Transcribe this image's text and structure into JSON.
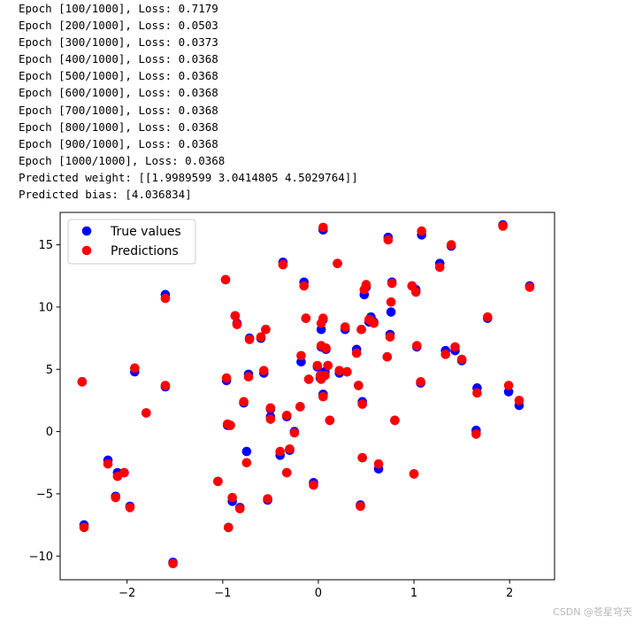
{
  "console": {
    "lines": [
      "Epoch [100/1000], Loss: 0.7179",
      "Epoch [200/1000], Loss: 0.0503",
      "Epoch [300/1000], Loss: 0.0373",
      "Epoch [400/1000], Loss: 0.0368",
      "Epoch [500/1000], Loss: 0.0368",
      "Epoch [600/1000], Loss: 0.0368",
      "Epoch [700/1000], Loss: 0.0368",
      "Epoch [800/1000], Loss: 0.0368",
      "Epoch [900/1000], Loss: 0.0368",
      "Epoch [1000/1000], Loss: 0.0368",
      "Predicted weight: [[1.9989599 3.0414805 4.5029764]]",
      "Predicted bias: [4.036834]"
    ]
  },
  "watermark": "CSDN @苍星穹天",
  "chart_data": {
    "type": "scatter",
    "title": "",
    "xlabel": "",
    "ylabel": "",
    "xlim": [
      -2.7,
      2.47
    ],
    "ylim": [
      -11.9,
      17.6
    ],
    "xticks": [
      -2,
      -1,
      0,
      1,
      2
    ],
    "ytick_values": [
      -10,
      -5,
      0,
      5,
      10,
      15
    ],
    "ytick_labels": [
      "−10",
      "−5",
      "0",
      "5",
      "10",
      "15"
    ],
    "grid": false,
    "legend_position": "top-left",
    "series": [
      {
        "name": "True values",
        "color": "#0000ff",
        "points": [
          [
            -2.47,
            4.0
          ],
          [
            -2.45,
            -7.5
          ],
          [
            -2.2,
            -2.3
          ],
          [
            -2.12,
            -5.2
          ],
          [
            -2.1,
            -3.3
          ],
          [
            -2.03,
            -3.3
          ],
          [
            -1.97,
            -6.0
          ],
          [
            -1.92,
            4.8
          ],
          [
            -1.8,
            1.5
          ],
          [
            -1.6,
            11.0
          ],
          [
            -1.6,
            3.6
          ],
          [
            -1.52,
            -10.5
          ],
          [
            -1.05,
            -4.0
          ],
          [
            -0.97,
            12.2
          ],
          [
            -0.96,
            4.1
          ],
          [
            -0.95,
            0.5
          ],
          [
            -0.94,
            -7.7
          ],
          [
            -0.92,
            0.5
          ],
          [
            -0.9,
            -5.6
          ],
          [
            -0.87,
            9.3
          ],
          [
            -0.85,
            8.7
          ],
          [
            -0.82,
            -6.1
          ],
          [
            -0.78,
            2.3
          ],
          [
            -0.75,
            -1.6
          ],
          [
            -0.73,
            4.6
          ],
          [
            -0.72,
            7.5
          ],
          [
            -0.6,
            7.5
          ],
          [
            -0.57,
            4.7
          ],
          [
            -0.55,
            8.2
          ],
          [
            -0.53,
            -5.5
          ],
          [
            -0.5,
            1.2
          ],
          [
            -0.5,
            1.8
          ],
          [
            -0.4,
            -1.9
          ],
          [
            -0.37,
            13.6
          ],
          [
            -0.33,
            -3.3
          ],
          [
            -0.33,
            1.2
          ],
          [
            -0.3,
            -1.5
          ],
          [
            -0.25,
            0.0
          ],
          [
            -0.19,
            2.0
          ],
          [
            -0.18,
            5.6
          ],
          [
            -0.15,
            12.0
          ],
          [
            -0.13,
            9.1
          ],
          [
            -0.1,
            4.2
          ],
          [
            -0.05,
            -4.1
          ],
          [
            -0.01,
            5.2
          ],
          [
            0.02,
            4.3
          ],
          [
            0.03,
            8.2
          ],
          [
            0.03,
            6.8
          ],
          [
            0.03,
            4.5
          ],
          [
            0.05,
            9.0
          ],
          [
            0.05,
            3.0
          ],
          [
            0.05,
            16.2
          ],
          [
            0.07,
            4.8
          ],
          [
            0.08,
            6.6
          ],
          [
            0.1,
            5.3
          ],
          [
            0.12,
            0.9
          ],
          [
            0.2,
            13.5
          ],
          [
            0.22,
            4.7
          ],
          [
            0.28,
            8.2
          ],
          [
            0.3,
            4.8
          ],
          [
            0.4,
            6.6
          ],
          [
            0.42,
            3.7
          ],
          [
            0.44,
            -5.9
          ],
          [
            0.45,
            8.2
          ],
          [
            0.46,
            -2.1
          ],
          [
            0.46,
            2.4
          ],
          [
            0.48,
            11.0
          ],
          [
            0.5,
            11.6
          ],
          [
            0.53,
            8.8
          ],
          [
            0.55,
            9.2
          ],
          [
            0.58,
            8.8
          ],
          [
            0.63,
            -3.0
          ],
          [
            0.72,
            6.0
          ],
          [
            0.73,
            15.6
          ],
          [
            0.75,
            7.8
          ],
          [
            0.76,
            9.6
          ],
          [
            0.77,
            12.0
          ],
          [
            0.8,
            0.9
          ],
          [
            0.98,
            11.7
          ],
          [
            1.0,
            -3.4
          ],
          [
            1.02,
            11.4
          ],
          [
            1.03,
            6.8
          ],
          [
            1.07,
            3.9
          ],
          [
            1.08,
            15.8
          ],
          [
            1.27,
            13.5
          ],
          [
            1.33,
            6.5
          ],
          [
            1.39,
            14.9
          ],
          [
            1.43,
            6.5
          ],
          [
            1.5,
            5.7
          ],
          [
            1.65,
            0.1
          ],
          [
            1.66,
            3.5
          ],
          [
            1.77,
            9.1
          ],
          [
            1.93,
            16.6
          ],
          [
            1.99,
            3.2
          ],
          [
            2.1,
            2.1
          ],
          [
            2.21,
            11.7
          ]
        ]
      },
      {
        "name": "Predictions",
        "color": "#ff0000",
        "points": [
          [
            -2.47,
            4.0
          ],
          [
            -2.45,
            -7.7
          ],
          [
            -2.2,
            -2.6
          ],
          [
            -2.12,
            -5.3
          ],
          [
            -2.1,
            -3.6
          ],
          [
            -2.03,
            -3.3
          ],
          [
            -1.97,
            -6.1
          ],
          [
            -1.92,
            5.1
          ],
          [
            -1.8,
            1.5
          ],
          [
            -1.6,
            10.7
          ],
          [
            -1.6,
            3.7
          ],
          [
            -1.52,
            -10.6
          ],
          [
            -1.05,
            -4.0
          ],
          [
            -0.97,
            12.2
          ],
          [
            -0.96,
            4.3
          ],
          [
            -0.95,
            0.6
          ],
          [
            -0.94,
            -7.7
          ],
          [
            -0.92,
            0.5
          ],
          [
            -0.9,
            -5.3
          ],
          [
            -0.87,
            9.3
          ],
          [
            -0.85,
            8.6
          ],
          [
            -0.82,
            -6.2
          ],
          [
            -0.78,
            2.4
          ],
          [
            -0.75,
            -2.5
          ],
          [
            -0.73,
            4.4
          ],
          [
            -0.72,
            7.4
          ],
          [
            -0.6,
            7.6
          ],
          [
            -0.57,
            4.9
          ],
          [
            -0.55,
            8.2
          ],
          [
            -0.53,
            -5.4
          ],
          [
            -0.5,
            1.0
          ],
          [
            -0.5,
            1.9
          ],
          [
            -0.4,
            -1.6
          ],
          [
            -0.37,
            13.4
          ],
          [
            -0.33,
            -3.3
          ],
          [
            -0.33,
            1.3
          ],
          [
            -0.3,
            -1.4
          ],
          [
            -0.25,
            -0.1
          ],
          [
            -0.19,
            2.0
          ],
          [
            -0.18,
            6.1
          ],
          [
            -0.15,
            11.7
          ],
          [
            -0.13,
            9.1
          ],
          [
            -0.1,
            4.2
          ],
          [
            -0.05,
            -4.3
          ],
          [
            -0.01,
            5.3
          ],
          [
            0.02,
            4.5
          ],
          [
            0.03,
            8.7
          ],
          [
            0.03,
            6.9
          ],
          [
            0.03,
            4.2
          ],
          [
            0.05,
            9.1
          ],
          [
            0.05,
            2.8
          ],
          [
            0.05,
            16.4
          ],
          [
            0.07,
            4.5
          ],
          [
            0.08,
            6.7
          ],
          [
            0.1,
            5.3
          ],
          [
            0.12,
            0.9
          ],
          [
            0.2,
            13.5
          ],
          [
            0.22,
            4.9
          ],
          [
            0.28,
            8.4
          ],
          [
            0.3,
            4.8
          ],
          [
            0.4,
            6.3
          ],
          [
            0.42,
            3.7
          ],
          [
            0.44,
            -6.0
          ],
          [
            0.45,
            8.2
          ],
          [
            0.46,
            -2.1
          ],
          [
            0.46,
            2.2
          ],
          [
            0.48,
            11.4
          ],
          [
            0.5,
            11.8
          ],
          [
            0.53,
            9.0
          ],
          [
            0.55,
            8.9
          ],
          [
            0.58,
            8.7
          ],
          [
            0.63,
            -2.6
          ],
          [
            0.72,
            6.0
          ],
          [
            0.73,
            15.4
          ],
          [
            0.75,
            7.6
          ],
          [
            0.76,
            10.4
          ],
          [
            0.77,
            11.9
          ],
          [
            0.8,
            0.9
          ],
          [
            0.98,
            11.7
          ],
          [
            1.0,
            -3.4
          ],
          [
            1.02,
            11.2
          ],
          [
            1.03,
            6.9
          ],
          [
            1.07,
            4.0
          ],
          [
            1.08,
            16.1
          ],
          [
            1.27,
            13.2
          ],
          [
            1.33,
            6.2
          ],
          [
            1.39,
            15.0
          ],
          [
            1.43,
            6.8
          ],
          [
            1.5,
            5.8
          ],
          [
            1.65,
            -0.2
          ],
          [
            1.66,
            3.1
          ],
          [
            1.77,
            9.2
          ],
          [
            1.93,
            16.5
          ],
          [
            1.99,
            3.7
          ],
          [
            2.1,
            2.5
          ],
          [
            2.21,
            11.6
          ]
        ]
      }
    ]
  }
}
